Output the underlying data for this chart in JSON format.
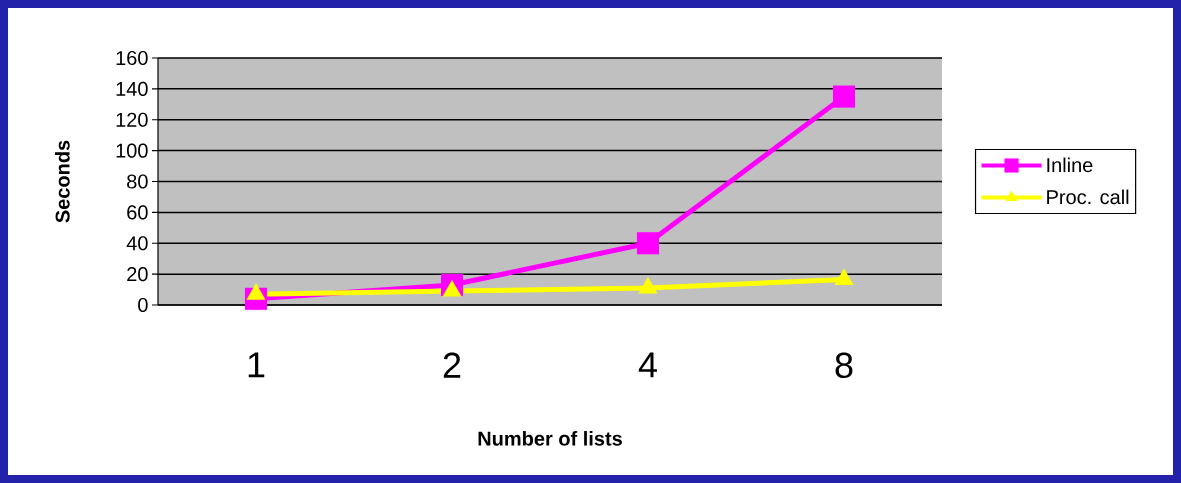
{
  "chart_data": {
    "type": "line",
    "xlabel": "Number of lists",
    "ylabel": "Seconds",
    "categories": [
      "1",
      "2",
      "4",
      "8"
    ],
    "series": [
      {
        "name": "Inline",
        "color": "#ff00ff",
        "marker": "square",
        "values": [
          4,
          13,
          40,
          135
        ]
      },
      {
        "name": "Proc. call",
        "color": "#ffff00",
        "marker": "triangle",
        "values": [
          7,
          9,
          11,
          16.5
        ]
      }
    ],
    "ylim": [
      0,
      160
    ],
    "yticks": [
      0,
      20,
      40,
      60,
      80,
      100,
      120,
      140,
      160
    ],
    "grid": "y",
    "legend": "right"
  }
}
